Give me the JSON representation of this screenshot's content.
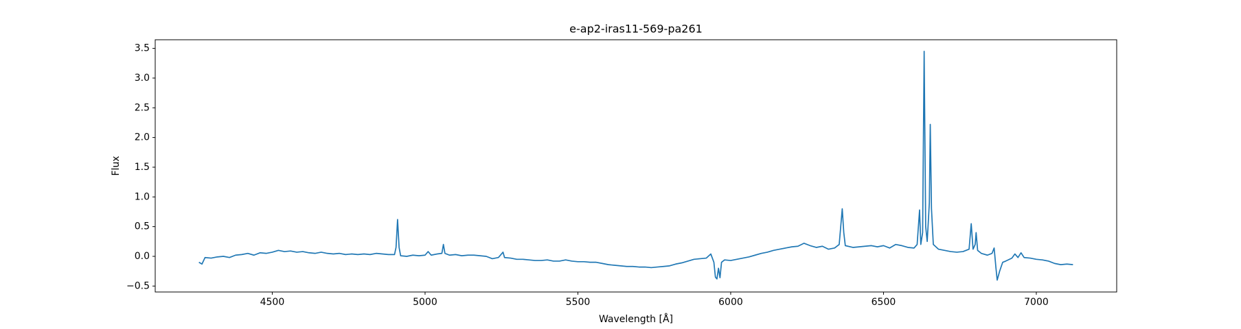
{
  "chart_data": {
    "type": "line",
    "title": "e-ap2-iras11-569-pa261",
    "x_label": "Wavelength [Å]",
    "y_label": "Flux",
    "color": "#1f77b4",
    "grid": false,
    "xlim": [
      4117,
      7263
    ],
    "ylim": [
      -0.6,
      3.645
    ],
    "xticks": [
      4500,
      5000,
      5500,
      6000,
      6500,
      7000
    ],
    "yticks": [
      {
        "value": -0.5,
        "label": "−0.5"
      },
      {
        "value": 0,
        "label": "0.0"
      },
      0.5,
      {
        "value": 1,
        "label": "1.0"
      },
      1.5,
      {
        "value": 2,
        "label": "2.0"
      },
      2.5,
      {
        "value": 3,
        "label": "3.0"
      },
      3.5
    ],
    "x": [
      4260,
      4270,
      4280,
      4300,
      4320,
      4340,
      4360,
      4380,
      4400,
      4420,
      4440,
      4460,
      4480,
      4500,
      4520,
      4540,
      4560,
      4580,
      4600,
      4620,
      4640,
      4660,
      4680,
      4700,
      4720,
      4740,
      4760,
      4780,
      4800,
      4820,
      4840,
      4860,
      4880,
      4900,
      4905,
      4910,
      4915,
      4920,
      4940,
      4960,
      4980,
      5000,
      5010,
      5020,
      5040,
      5055,
      5060,
      5065,
      5080,
      5100,
      5120,
      5140,
      5160,
      5180,
      5200,
      5220,
      5240,
      5255,
      5260,
      5280,
      5300,
      5320,
      5340,
      5360,
      5380,
      5400,
      5420,
      5440,
      5460,
      5480,
      5500,
      5520,
      5540,
      5560,
      5580,
      5600,
      5620,
      5640,
      5660,
      5680,
      5700,
      5720,
      5740,
      5760,
      5780,
      5800,
      5820,
      5840,
      5860,
      5880,
      5900,
      5920,
      5935,
      5945,
      5950,
      5955,
      5960,
      5965,
      5970,
      5980,
      6000,
      6020,
      6040,
      6060,
      6080,
      6100,
      6120,
      6140,
      6160,
      6180,
      6200,
      6220,
      6240,
      6260,
      6280,
      6300,
      6320,
      6340,
      6355,
      6360,
      6365,
      6370,
      6375,
      6400,
      6420,
      6440,
      6460,
      6480,
      6500,
      6520,
      6540,
      6560,
      6580,
      6600,
      6610,
      6618,
      6622,
      6628,
      6633,
      6638,
      6643,
      6650,
      6653,
      6657,
      6663,
      6680,
      6700,
      6720,
      6740,
      6760,
      6780,
      6787,
      6793,
      6800,
      6803,
      6808,
      6820,
      6840,
      6855,
      6862,
      6868,
      6872,
      6880,
      6890,
      6900,
      6920,
      6930,
      6940,
      6950,
      6960,
      6980,
      7000,
      7020,
      7040,
      7060,
      7080,
      7100,
      7120
    ],
    "values": [
      -0.1,
      -0.13,
      -0.02,
      -0.03,
      -0.01,
      0.0,
      -0.02,
      0.02,
      0.03,
      0.05,
      0.02,
      0.06,
      0.05,
      0.07,
      0.1,
      0.08,
      0.09,
      0.07,
      0.08,
      0.06,
      0.05,
      0.07,
      0.05,
      0.04,
      0.05,
      0.03,
      0.04,
      0.03,
      0.04,
      0.03,
      0.05,
      0.04,
      0.03,
      0.03,
      0.15,
      0.62,
      0.15,
      0.01,
      0.0,
      0.02,
      0.01,
      0.02,
      0.08,
      0.02,
      0.04,
      0.05,
      0.2,
      0.05,
      0.02,
      0.03,
      0.01,
      0.02,
      0.02,
      0.01,
      0.0,
      -0.04,
      -0.02,
      0.07,
      -0.02,
      -0.03,
      -0.05,
      -0.05,
      -0.06,
      -0.07,
      -0.07,
      -0.06,
      -0.08,
      -0.08,
      -0.06,
      -0.08,
      -0.09,
      -0.09,
      -0.1,
      -0.1,
      -0.12,
      -0.14,
      -0.15,
      -0.16,
      -0.17,
      -0.17,
      -0.18,
      -0.18,
      -0.19,
      -0.18,
      -0.17,
      -0.16,
      -0.13,
      -0.11,
      -0.08,
      -0.05,
      -0.04,
      -0.03,
      0.04,
      -0.1,
      -0.35,
      -0.38,
      -0.2,
      -0.36,
      -0.1,
      -0.06,
      -0.07,
      -0.05,
      -0.03,
      -0.01,
      0.02,
      0.05,
      0.07,
      0.1,
      0.12,
      0.14,
      0.16,
      0.17,
      0.22,
      0.18,
      0.15,
      0.17,
      0.12,
      0.14,
      0.2,
      0.5,
      0.8,
      0.4,
      0.18,
      0.15,
      0.16,
      0.17,
      0.18,
      0.16,
      0.18,
      0.14,
      0.2,
      0.18,
      0.15,
      0.14,
      0.2,
      0.78,
      0.2,
      0.4,
      3.45,
      0.5,
      0.25,
      0.9,
      2.22,
      0.8,
      0.2,
      0.12,
      0.1,
      0.08,
      0.07,
      0.08,
      0.12,
      0.55,
      0.12,
      0.2,
      0.4,
      0.1,
      0.05,
      0.02,
      0.05,
      0.14,
      -0.2,
      -0.4,
      -0.25,
      -0.1,
      -0.08,
      -0.03,
      0.04,
      -0.02,
      0.06,
      -0.02,
      -0.03,
      -0.05,
      -0.06,
      -0.08,
      -0.12,
      -0.14,
      -0.13,
      -0.14
    ]
  }
}
